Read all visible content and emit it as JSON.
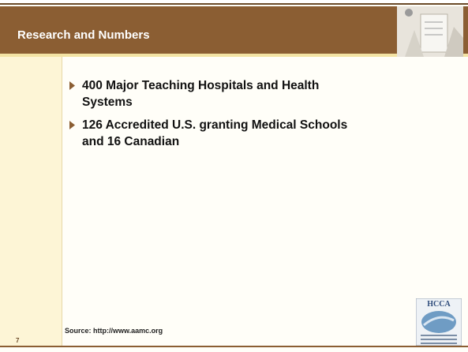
{
  "header": {
    "title": "Research and Numbers"
  },
  "bullets": [
    "400 Major Teaching Hospitals and Health Systems",
    "126 Accredited U.S. granting Medical Schools and 16 Canadian"
  ],
  "footer": {
    "source": "Source: http://www.aamc.org",
    "page_number": "7"
  },
  "logo": {
    "text": "HCCA"
  }
}
